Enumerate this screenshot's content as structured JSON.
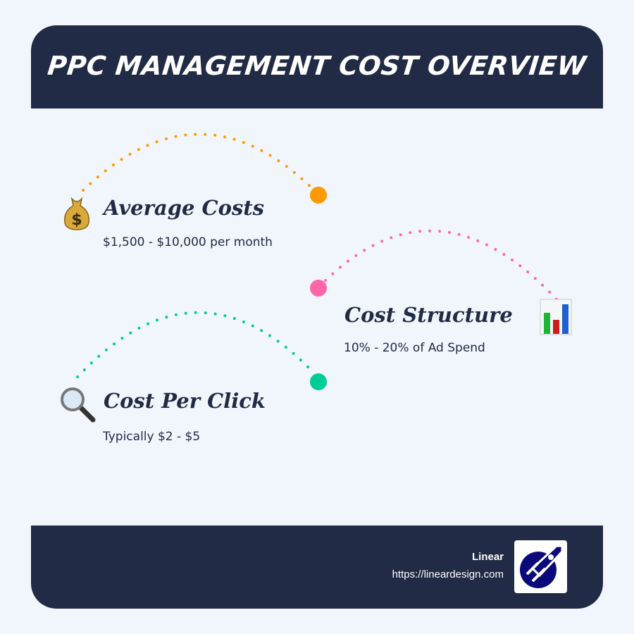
{
  "header": {
    "title": "PPC MANAGEMENT COST OVERVIEW"
  },
  "items": [
    {
      "title": "Average Costs",
      "desc": "$1,500 - $10,000 per month",
      "icon": "money-bag-icon",
      "color": "#ff9900"
    },
    {
      "title": "Cost Structure",
      "desc": "10% - 20% of Ad Spend",
      "icon": "bar-chart-icon",
      "color": "#ff66a8"
    },
    {
      "title": "Cost Per Click",
      "desc": "Typically $2 - $5",
      "icon": "magnifying-glass-icon",
      "color": "#00cc99"
    }
  ],
  "footer": {
    "brand": "Linear",
    "url": "https://lineardesign.com",
    "logo": "rocket-logo"
  }
}
